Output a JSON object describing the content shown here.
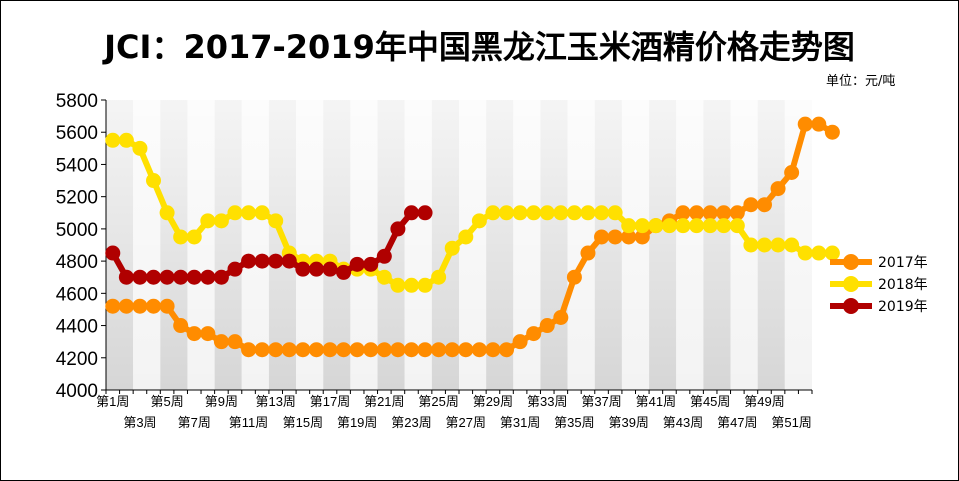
{
  "chart_data": {
    "type": "line",
    "title": "JCI：2017-2019年中国黑龙江玉米酒精价格走势图",
    "unit": "单位：元/吨",
    "ylim": [
      4000,
      5800
    ],
    "yticks": [
      4000,
      4200,
      4400,
      4600,
      4800,
      5000,
      5200,
      5400,
      5600,
      5800
    ],
    "grid": "alternating vertical bands",
    "legend_position": "right",
    "x_tick_labels": [
      "第1周",
      "第3周",
      "第5周",
      "第7周",
      "第9周",
      "第11周",
      "第13周",
      "第15周",
      "第17周",
      "第19周",
      "第21周",
      "第23周",
      "第25周",
      "第27周",
      "第29周",
      "第31周",
      "第33周",
      "第35周",
      "第37周",
      "第39周",
      "第41周",
      "第43周",
      "第45周",
      "第47周",
      "第49周",
      "第51周"
    ],
    "series": [
      {
        "name": "2017年",
        "color": "#ff8c00",
        "values": [
          4520,
          4520,
          4520,
          4520,
          4520,
          4400,
          4350,
          4350,
          4300,
          4300,
          4250,
          4250,
          4250,
          4250,
          4250,
          4250,
          4250,
          4250,
          4250,
          4250,
          4250,
          4250,
          4250,
          4250,
          4250,
          4250,
          4250,
          4250,
          4250,
          4250,
          4300,
          4350,
          4400,
          4450,
          4700,
          4850,
          4950,
          4950,
          4950,
          4950,
          5020,
          5050,
          5100,
          5100,
          5100,
          5100,
          5100,
          5150,
          5150,
          5250,
          5350,
          5650,
          5650,
          5600
        ]
      },
      {
        "name": "2018年",
        "color": "#ffe000",
        "values": [
          5550,
          5550,
          5500,
          5300,
          5100,
          4950,
          4950,
          5050,
          5050,
          5100,
          5100,
          5100,
          5050,
          4850,
          4800,
          4800,
          4800,
          4750,
          4750,
          4750,
          4700,
          4650,
          4650,
          4650,
          4700,
          4880,
          4950,
          5050,
          5100,
          5100,
          5100,
          5100,
          5100,
          5100,
          5100,
          5100,
          5100,
          5100,
          5020,
          5020,
          5020,
          5020,
          5020,
          5020,
          5020,
          5020,
          5020,
          4900,
          4900,
          4900,
          4900,
          4850,
          4850,
          4850
        ]
      },
      {
        "name": "2019年",
        "color": "#b00000",
        "values": [
          4850,
          4700,
          4700,
          4700,
          4700,
          4700,
          4700,
          4700,
          4700,
          4750,
          4800,
          4800,
          4800,
          4800,
          4750,
          4750,
          4750,
          4730,
          4780,
          4780,
          4830,
          5000,
          5100,
          5100
        ]
      }
    ]
  }
}
